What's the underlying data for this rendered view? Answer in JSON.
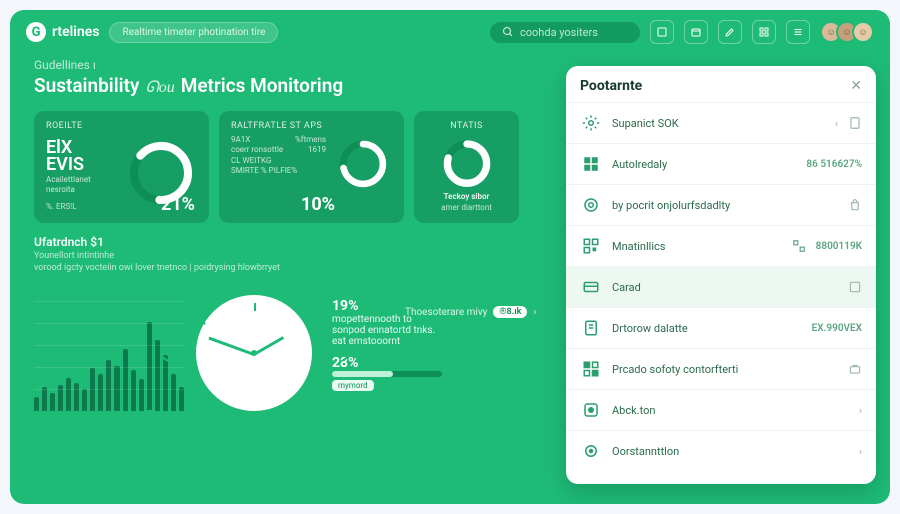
{
  "brand": {
    "glyph": "G",
    "name": "rtelines"
  },
  "header": {
    "pill_label": "Realtime timeter photination tire",
    "search_placeholder": "coohda yositers",
    "icons": [
      "box-icon",
      "calendar-icon",
      "edit-icon",
      "grid-icon",
      "menu-icon"
    ]
  },
  "breadcrumb": "Gudellines ı",
  "title": {
    "a": "Sustainbility",
    "b": "ᘏou",
    "c": "Metrics Monitoring"
  },
  "cards": {
    "card1": {
      "label": "ROEILTE",
      "big1": "ElX",
      "big2": "EVIS",
      "lines": [
        "Acailettlanet",
        "nesroita"
      ],
      "foot_left": "%. ERS!L",
      "value": "21%",
      "gauge": {
        "radius": 30,
        "stroke": 8,
        "color": "#ffffff",
        "bg": "#0f8f58",
        "percent": 65
      }
    },
    "card2": {
      "label": "RALTFRATLE ST APS",
      "rows": [
        [
          "9A1X",
          "%ftmens"
        ],
        [
          "coerr ronsottle",
          "1619"
        ],
        [
          "CL WEITKG",
          ""
        ],
        [
          "SMIRTE  % PILFIE%",
          ""
        ]
      ],
      "value": "10%",
      "gauge": {
        "radius": 24,
        "stroke": 7,
        "color": "#ffffff",
        "bg": "#0f8f58",
        "percent": 72
      }
    },
    "card3": {
      "label": "NTATIS",
      "caption1": "Teckoy sibor",
      "caption2": "amer diarttont",
      "gauge": {
        "radius": 24,
        "stroke": 8,
        "color": "#ffffff",
        "bg": "#0f8f58",
        "percent": 80
      }
    }
  },
  "section": {
    "heading": "Ufatrdnch $1",
    "sub1": "Younellort intintinhe",
    "sub2": "vorood igcty vocteiin owi lover tnetnco | poidrysing hlowbrryet"
  },
  "see_more": {
    "label": "Thoesoterare mivy",
    "badge": "®8.ık"
  },
  "bar_chart": {
    "values": [
      10,
      20,
      14,
      22,
      30,
      24,
      18,
      40,
      34,
      48,
      42,
      60,
      38,
      28,
      88,
      70,
      54,
      34,
      20
    ],
    "color": "#0d7a4d",
    "grid_color": "#ffffff22",
    "ymax": 100
  },
  "stats": {
    "a_value": "19%",
    "a_desc1": "mopettennooth to",
    "a_desc2": "sonpod ennatortd tnks.",
    "a_desc3": "eat emstooornt",
    "b_value": "28%",
    "bar_percent": 55,
    "tag": "mymord"
  },
  "panel": {
    "title": "Pootarnte",
    "rows": [
      {
        "icon": "gear-icon",
        "label": "Supanict SOK",
        "right_icon": "tile-icon",
        "chevrons": true
      },
      {
        "icon": "grid2-icon",
        "label": "Autolredaly",
        "value": "86 516627%"
      },
      {
        "icon": "target-icon",
        "label": "by pocrit onjolurfsdadlty",
        "right_icon": "bag-icon"
      },
      {
        "icon": "qr-icon",
        "label": "Mnatinllics",
        "right_icon": "qr2-icon",
        "value": "8800119K"
      },
      {
        "icon": "card-icon",
        "label": "Carad",
        "right_icon": "tile2-icon",
        "active": true
      },
      {
        "icon": "doc-icon",
        "label": "Drtorow dalatte",
        "value": "EX.990VEX"
      },
      {
        "icon": "qr3-icon",
        "label": "Prcado sofoty contorfterti",
        "right_icon": "brief-icon"
      },
      {
        "icon": "dot-icon",
        "label": "Abck.ton",
        "chevron": true
      },
      {
        "icon": "gear2-icon",
        "label": "Oorstannttlon",
        "chevron": true
      }
    ]
  },
  "colors": {
    "bg": "#1ebb77",
    "card": "#169e64",
    "dark": "#0f8f58",
    "white": "#ffffff",
    "panel_text": "#2a6a4b"
  }
}
